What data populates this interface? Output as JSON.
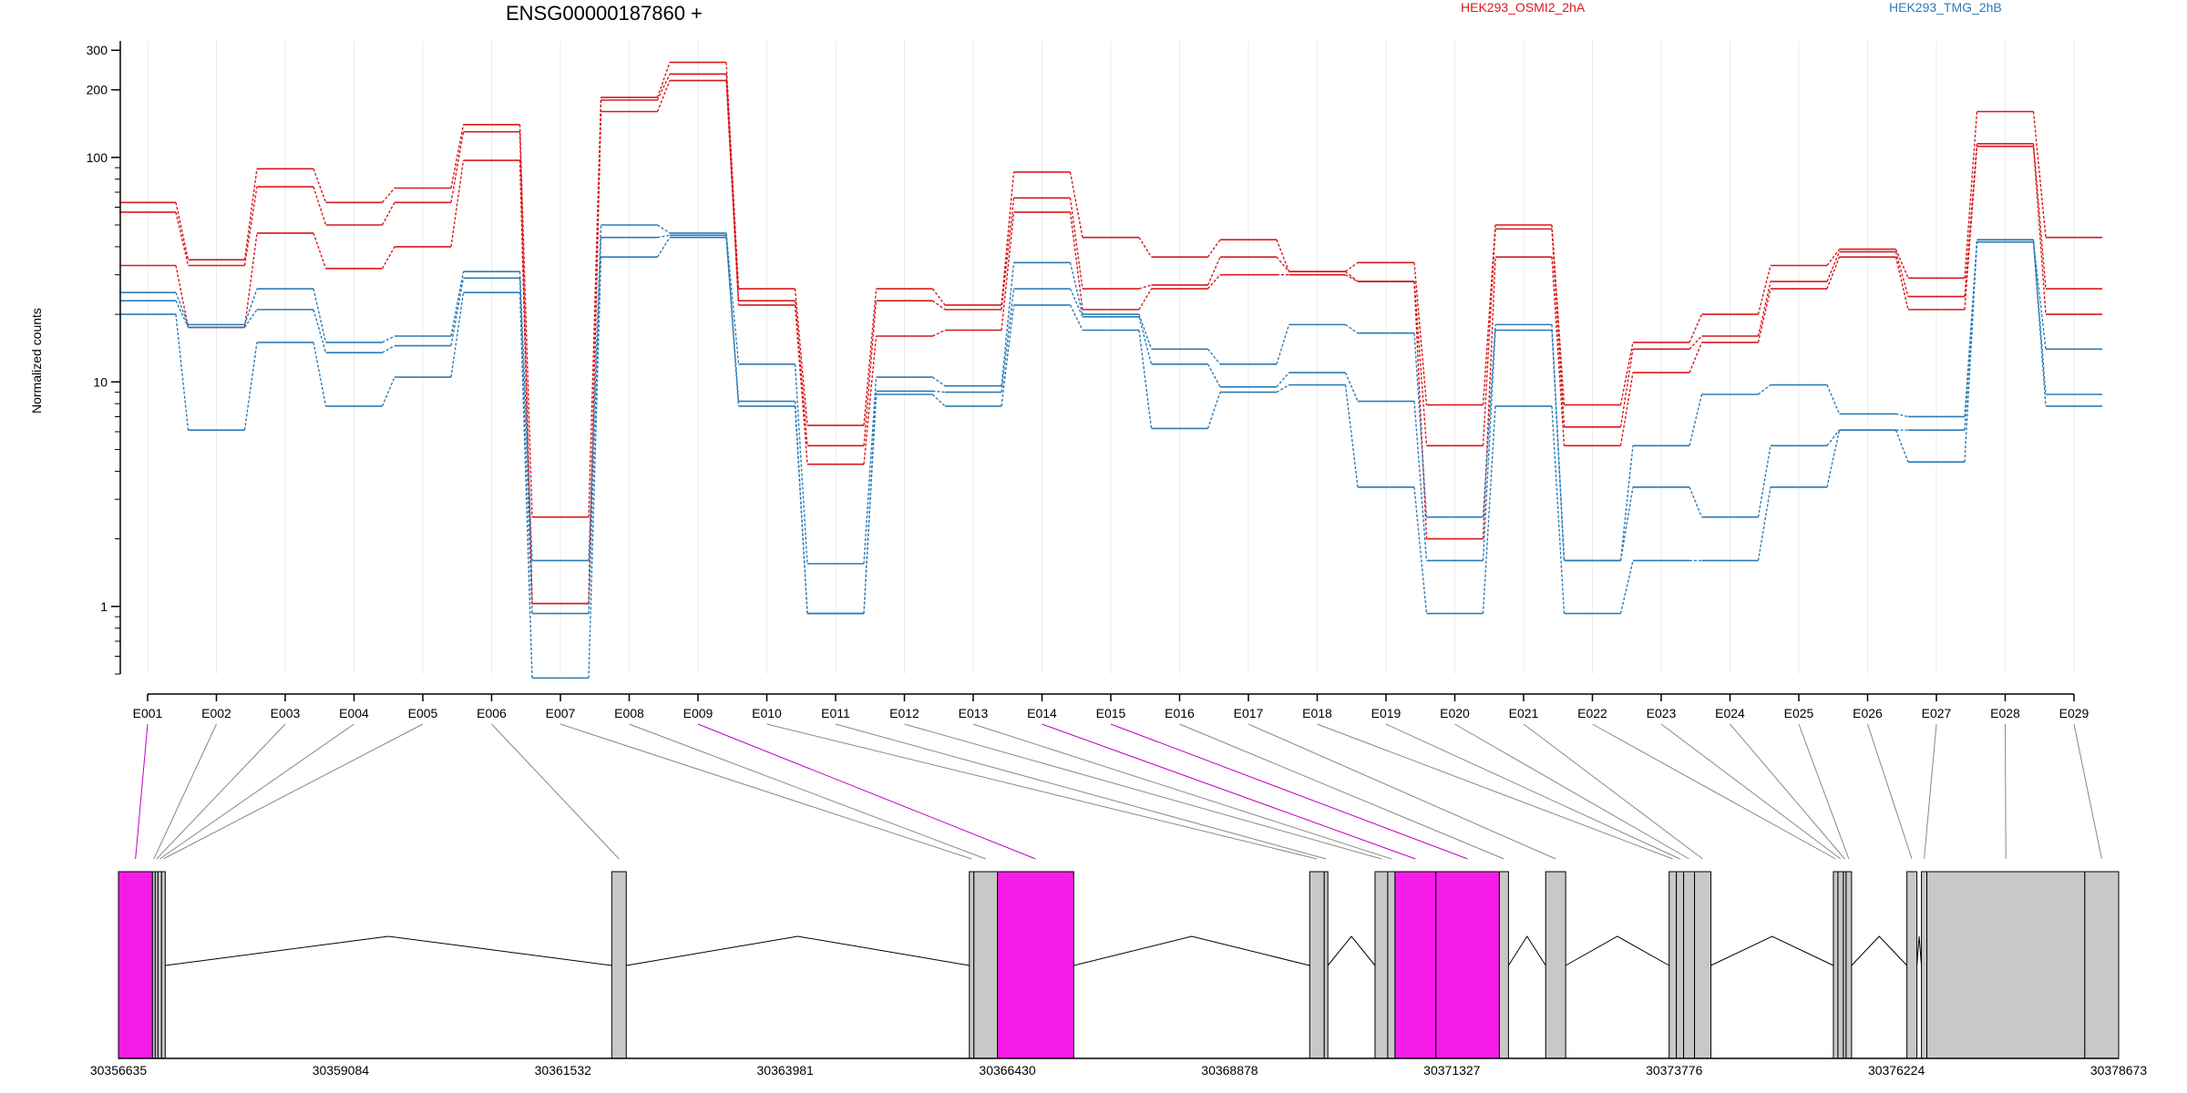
{
  "chart_data": {
    "type": "line",
    "title": "ENSG00000187860 +",
    "ylabel": "Normalized counts",
    "yscale": "log",
    "ylim": [
      0.5,
      330
    ],
    "yticks": [
      1,
      10,
      100,
      200,
      300
    ],
    "grid": "vertical",
    "categories": [
      "E001",
      "E002",
      "E003",
      "E004",
      "E005",
      "E006",
      "E007",
      "E008",
      "E009",
      "E010",
      "E011",
      "E012",
      "E013",
      "E014",
      "E015",
      "E016",
      "E017",
      "E018",
      "E019",
      "E020",
      "E021",
      "E022",
      "E023",
      "E024",
      "E025",
      "E026",
      "E027",
      "E028",
      "E029"
    ],
    "conditions": [
      {
        "name": "HEK293_OSMI2_2hA",
        "color": "#d7191c"
      },
      {
        "name": "HEK293_TMG_2hB",
        "color": "#2c7bb6"
      }
    ],
    "series": [
      {
        "condition": "HEK293_OSMI2_2hA",
        "values": [
          63,
          35,
          89,
          63,
          73,
          140,
          2.5,
          185,
          265,
          26,
          6.4,
          26,
          22,
          86,
          44,
          36,
          43,
          31,
          34,
          7.9,
          50,
          7.9,
          15,
          20,
          33,
          39,
          29,
          160,
          44
        ]
      },
      {
        "condition": "HEK293_OSMI2_2hA",
        "values": [
          57,
          33,
          74,
          50,
          63,
          130,
          1.03,
          180,
          235,
          23,
          5.2,
          23,
          21,
          66,
          26,
          27,
          36,
          31,
          28,
          5.2,
          48,
          6.3,
          14,
          16,
          28,
          38,
          24,
          115,
          26
        ]
      },
      {
        "condition": "HEK293_OSMI2_2hA",
        "values": [
          33,
          17.5,
          46,
          32,
          40,
          97,
          1.03,
          160,
          220,
          22,
          4.3,
          16,
          17,
          57,
          21,
          26,
          30,
          30,
          28,
          2.0,
          36,
          5.2,
          11,
          15,
          26,
          36,
          21,
          112,
          20
        ]
      },
      {
        "condition": "HEK293_TMG_2hB",
        "values": [
          25,
          18,
          26,
          15,
          16,
          31,
          1.6,
          50,
          46,
          12,
          1.55,
          10.5,
          9.6,
          34,
          20,
          14,
          12,
          18,
          16.5,
          2.5,
          18,
          1.6,
          5.2,
          8.8,
          9.7,
          7.2,
          7,
          42,
          14
        ]
      },
      {
        "condition": "HEK293_TMG_2hB",
        "values": [
          23,
          17.5,
          21,
          13.5,
          14.5,
          29,
          0.93,
          44,
          45,
          8.2,
          0.93,
          9.1,
          9,
          26,
          19.5,
          12,
          9.5,
          11,
          8.2,
          1.6,
          17,
          1.6,
          3.4,
          2.5,
          5.2,
          6.1,
          6.1,
          43,
          8.8
        ]
      },
      {
        "condition": "HEK293_TMG_2hB",
        "values": [
          20,
          6.1,
          15,
          7.8,
          10.5,
          25,
          0.48,
          36,
          44,
          7.8,
          0.93,
          8.8,
          7.8,
          22,
          17,
          6.2,
          9,
          9.7,
          3.4,
          0.93,
          7.8,
          0.93,
          1.6,
          1.6,
          3.4,
          6.1,
          4.4,
          42,
          7.8
        ]
      }
    ],
    "gene_model": {
      "coordinate_ticks": [
        "30356635",
        "30359084",
        "30361532",
        "30363981",
        "30366430",
        "30368878",
        "30371327",
        "30373776",
        "30376224",
        "30378673"
      ],
      "coordinate_range": [
        30356635,
        30378673
      ],
      "highlight_color": "#f51ce8",
      "exon_color": "#c8c8c8",
      "highlighted_bins": [
        "E001",
        "E009",
        "E014",
        "E015"
      ],
      "exon_bins": [
        {
          "id": "E001",
          "start": 30356635,
          "end": 30357010,
          "highlight": true
        },
        {
          "id": "E002",
          "start": 30357010,
          "end": 30357040,
          "highlight": false
        },
        {
          "id": "E003",
          "start": 30357040,
          "end": 30357070,
          "highlight": false
        },
        {
          "id": "E004",
          "start": 30357070,
          "end": 30357110,
          "highlight": false
        },
        {
          "id": "E005",
          "start": 30357110,
          "end": 30357150,
          "highlight": false
        },
        {
          "id": "E006",
          "start": 30362070,
          "end": 30362230,
          "highlight": false
        },
        {
          "id": "E007",
          "start": 30366010,
          "end": 30366060,
          "highlight": false
        },
        {
          "id": "E008",
          "start": 30366060,
          "end": 30366320,
          "highlight": false
        },
        {
          "id": "E009",
          "start": 30366320,
          "end": 30367160,
          "highlight": true
        },
        {
          "id": "E010",
          "start": 30369760,
          "end": 30369920,
          "highlight": false
        },
        {
          "id": "E011",
          "start": 30369920,
          "end": 30369960,
          "highlight": false
        },
        {
          "id": "E012",
          "start": 30370480,
          "end": 30370620,
          "highlight": false
        },
        {
          "id": "E013",
          "start": 30370620,
          "end": 30370700,
          "highlight": false
        },
        {
          "id": "E014",
          "start": 30370700,
          "end": 30371150,
          "highlight": true
        },
        {
          "id": "E015",
          "start": 30371150,
          "end": 30371850,
          "highlight": true
        },
        {
          "id": "E016",
          "start": 30371850,
          "end": 30371950,
          "highlight": false
        },
        {
          "id": "E017",
          "start": 30372360,
          "end": 30372580,
          "highlight": false
        },
        {
          "id": "E018",
          "start": 30373720,
          "end": 30373800,
          "highlight": false
        },
        {
          "id": "E019",
          "start": 30373800,
          "end": 30373880,
          "highlight": false
        },
        {
          "id": "E020",
          "start": 30373880,
          "end": 30374000,
          "highlight": false
        },
        {
          "id": "E021",
          "start": 30374000,
          "end": 30374180,
          "highlight": false
        },
        {
          "id": "E022",
          "start": 30375530,
          "end": 30375580,
          "highlight": false
        },
        {
          "id": "E023",
          "start": 30375580,
          "end": 30375640,
          "highlight": false
        },
        {
          "id": "E024",
          "start": 30375640,
          "end": 30375670,
          "highlight": false
        },
        {
          "id": "E025",
          "start": 30375670,
          "end": 30375730,
          "highlight": false
        },
        {
          "id": "E026",
          "start": 30376340,
          "end": 30376450,
          "highlight": false
        },
        {
          "id": "E027",
          "start": 30376500,
          "end": 30376560,
          "highlight": false
        },
        {
          "id": "E028",
          "start": 30376560,
          "end": 30378300,
          "highlight": false
        },
        {
          "id": "E029",
          "start": 30378300,
          "end": 30378673,
          "highlight": false
        }
      ]
    }
  }
}
